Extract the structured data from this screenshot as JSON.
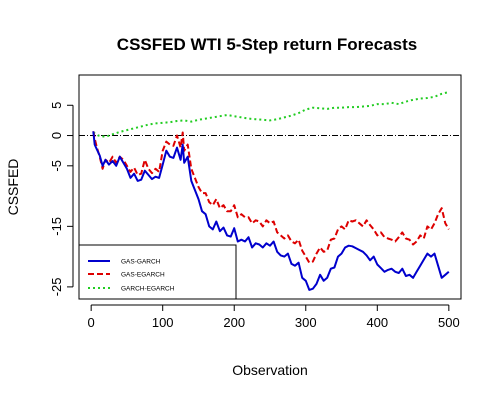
{
  "chart_data": {
    "type": "line",
    "title": "CSSFED WTI 5-Step return Forecasts",
    "xlabel": "Observation",
    "ylabel": "CSSFED",
    "xlim": [
      -17,
      517
    ],
    "ylim": [
      -27,
      10
    ],
    "x_ticks": [
      0,
      100,
      200,
      300,
      400,
      500
    ],
    "y_ticks": [
      5,
      0,
      -5,
      -15,
      -25
    ],
    "x_tick_labels": [
      "0",
      "100",
      "200",
      "300",
      "400",
      "500"
    ],
    "y_tick_labels": [
      "5",
      "0",
      "-5",
      "-15",
      "-25"
    ],
    "reference_line": {
      "y": 0,
      "style": "dot-dash",
      "color": "#000000"
    },
    "legend": {
      "placement": "bottom-left",
      "entries": [
        "GAS-GARCH",
        "GAS-EGARCH",
        "GARCH-EGARCH"
      ]
    },
    "series": [
      {
        "name": "GAS-GARCH",
        "color": "#0000cd",
        "style": "solid",
        "x": [
          3,
          5,
          8,
          12,
          16,
          20,
          25,
          30,
          35,
          40,
          45,
          50,
          55,
          60,
          65,
          70,
          75,
          80,
          85,
          90,
          95,
          100,
          105,
          110,
          115,
          120,
          125,
          128,
          130,
          135,
          140,
          145,
          150,
          155,
          160,
          165,
          170,
          175,
          180,
          185,
          190,
          195,
          200,
          205,
          210,
          215,
          220,
          225,
          230,
          235,
          240,
          245,
          250,
          255,
          260,
          265,
          270,
          275,
          280,
          285,
          290,
          295,
          300,
          305,
          310,
          315,
          320,
          325,
          330,
          335,
          340,
          345,
          350,
          355,
          360,
          365,
          370,
          375,
          380,
          385,
          390,
          395,
          400,
          405,
          410,
          415,
          420,
          425,
          430,
          435,
          440,
          445,
          450,
          455,
          460,
          465,
          470,
          475,
          480,
          485,
          490,
          495,
          500
        ],
        "values": [
          0.7,
          -1.5,
          -2.3,
          -3.3,
          -5.0,
          -4.0,
          -4.8,
          -4.2,
          -5.0,
          -3.5,
          -4.5,
          -5.5,
          -7.0,
          -6.3,
          -7.5,
          -7.3,
          -5.8,
          -6.5,
          -7.2,
          -6.8,
          -7.0,
          -4.8,
          -2.5,
          -3.5,
          -3.7,
          -2.0,
          -4.0,
          -1.5,
          -4.5,
          -3.5,
          -7.5,
          -9.0,
          -10.5,
          -12.5,
          -13.0,
          -15.0,
          -15.5,
          -14.2,
          -15.8,
          -15.2,
          -16.5,
          -16.7,
          -15.3,
          -17.5,
          -17.2,
          -17.5,
          -16.8,
          -18.5,
          -17.8,
          -18.0,
          -18.5,
          -17.8,
          -18.2,
          -17.5,
          -19.2,
          -19.8,
          -20.0,
          -19.5,
          -21.2,
          -21.5,
          -21.0,
          -23.5,
          -24.0,
          -25.5,
          -25.3,
          -24.5,
          -23.0,
          -24.0,
          -23.5,
          -22.0,
          -21.8,
          -20.0,
          -19.5,
          -18.5,
          -18.2,
          -18.3,
          -18.6,
          -18.9,
          -19.2,
          -19.8,
          -20.6,
          -20.0,
          -21.3,
          -21.9,
          -22.5,
          -22.2,
          -22.0,
          -22.5,
          -22.7,
          -22.0,
          -23.2,
          -23.0,
          -23.5,
          -22.5,
          -21.5,
          -20.5,
          -19.5,
          -20.0,
          -19.5,
          -21.5,
          -23.5,
          -23.0,
          -22.5
        ]
      },
      {
        "name": "GAS-EGARCH",
        "color": "#dd0000",
        "style": "dashed",
        "x": [
          3,
          5,
          8,
          12,
          16,
          20,
          25,
          30,
          35,
          40,
          45,
          50,
          55,
          60,
          65,
          70,
          75,
          80,
          85,
          90,
          95,
          100,
          105,
          110,
          115,
          120,
          125,
          128,
          130,
          135,
          140,
          145,
          150,
          155,
          160,
          165,
          170,
          175,
          180,
          185,
          190,
          195,
          200,
          205,
          210,
          215,
          220,
          225,
          230,
          235,
          240,
          245,
          250,
          255,
          260,
          265,
          270,
          275,
          280,
          285,
          290,
          295,
          300,
          305,
          310,
          315,
          320,
          325,
          330,
          335,
          340,
          345,
          350,
          355,
          360,
          365,
          370,
          375,
          380,
          385,
          390,
          395,
          400,
          405,
          410,
          415,
          420,
          425,
          430,
          435,
          440,
          445,
          450,
          455,
          460,
          465,
          470,
          475,
          480,
          485,
          490,
          495,
          500
        ],
        "values": [
          0.7,
          -0.5,
          -2.0,
          -3.5,
          -5.5,
          -4.0,
          -4.5,
          -3.5,
          -4.5,
          -3.5,
          -4.0,
          -5.0,
          -6.0,
          -5.3,
          -6.5,
          -6.3,
          -4.0,
          -5.5,
          -6.2,
          -5.5,
          -6.0,
          -2.5,
          -1.0,
          -1.5,
          -1.7,
          0.0,
          -2.0,
          0.5,
          -2.5,
          -1.5,
          -5.5,
          -7.0,
          -8.5,
          -9.5,
          -9.5,
          -11.0,
          -11.5,
          -10.5,
          -12.0,
          -11.5,
          -12.5,
          -12.5,
          -11.5,
          -13.5,
          -13.0,
          -13.5,
          -13.5,
          -14.5,
          -14.0,
          -14.2,
          -15.0,
          -14.0,
          -14.5,
          -14.2,
          -16.0,
          -16.5,
          -17.0,
          -16.5,
          -17.5,
          -17.8,
          -17.2,
          -19.0,
          -20.0,
          -21.0,
          -20.8,
          -19.5,
          -18.5,
          -19.2,
          -19.0,
          -17.2,
          -17.0,
          -15.5,
          -15.0,
          -15.5,
          -14.0,
          -14.2,
          -14.0,
          -14.5,
          -15.0,
          -14.0,
          -14.8,
          -15.5,
          -16.5,
          -16.0,
          -16.8,
          -17.0,
          -17.2,
          -17.5,
          -16.8,
          -16.0,
          -17.0,
          -17.2,
          -18.0,
          -17.5,
          -16.5,
          -17.0,
          -15.0,
          -15.5,
          -14.5,
          -13.0,
          -12.0,
          -14.5,
          -15.5
        ]
      },
      {
        "name": "GARCH-EGARCH",
        "color": "#22cc22",
        "style": "dotted",
        "x": [
          3,
          10,
          20,
          30,
          40,
          50,
          60,
          70,
          80,
          90,
          100,
          110,
          120,
          130,
          140,
          150,
          160,
          170,
          180,
          190,
          200,
          210,
          220,
          230,
          240,
          250,
          260,
          270,
          280,
          290,
          300,
          310,
          320,
          330,
          340,
          350,
          360,
          370,
          380,
          390,
          400,
          410,
          420,
          430,
          440,
          450,
          460,
          470,
          480,
          490,
          500
        ],
        "values": [
          0.5,
          0.0,
          -0.2,
          0.2,
          0.6,
          0.9,
          1.2,
          1.5,
          1.8,
          2.0,
          2.1,
          2.2,
          2.4,
          2.5,
          2.3,
          2.6,
          2.8,
          3.0,
          3.2,
          3.4,
          3.2,
          3.0,
          2.8,
          2.7,
          2.6,
          2.5,
          2.7,
          3.0,
          3.3,
          3.7,
          4.3,
          4.6,
          4.5,
          4.4,
          4.6,
          4.6,
          4.7,
          4.7,
          4.8,
          4.9,
          5.2,
          5.2,
          5.4,
          5.2,
          5.6,
          5.9,
          6.1,
          6.2,
          6.4,
          6.9,
          7.2
        ]
      }
    ]
  }
}
